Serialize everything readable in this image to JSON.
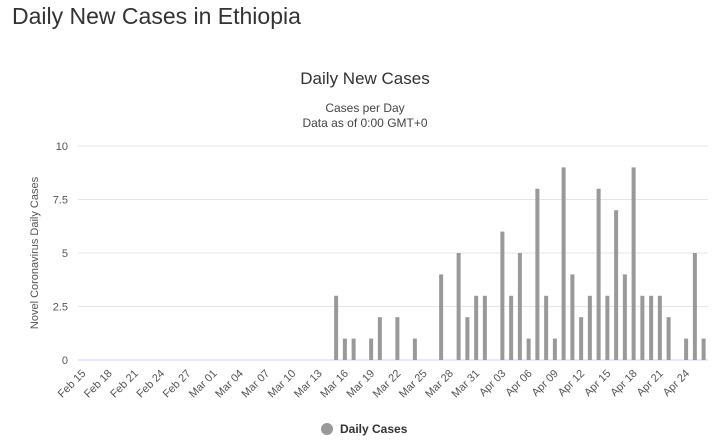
{
  "page": {
    "heading": "Daily New Cases in Ethiopia"
  },
  "colors": {
    "bar": "#999999",
    "grid": "#e6e6e6",
    "axis": "#ccd6eb"
  },
  "chart_data": {
    "type": "bar",
    "title": "Daily New Cases",
    "subtitle_lines": [
      "Cases per Day",
      "Data as of 0:00 GMT+0"
    ],
    "ylabel": "Novel Coronavirus Daily Cases",
    "xlabel": "",
    "ylim": [
      0,
      10
    ],
    "yticks": [
      "0",
      "2.5",
      "5",
      "7.5",
      "10"
    ],
    "yticks_values": [
      0,
      2.5,
      5,
      7.5,
      10
    ],
    "categories": [
      "Feb 15",
      "Feb 16",
      "Feb 17",
      "Feb 18",
      "Feb 19",
      "Feb 20",
      "Feb 21",
      "Feb 22",
      "Feb 23",
      "Feb 24",
      "Feb 25",
      "Feb 26",
      "Feb 27",
      "Feb 28",
      "Feb 29",
      "Mar 01",
      "Mar 02",
      "Mar 03",
      "Mar 04",
      "Mar 05",
      "Mar 06",
      "Mar 07",
      "Mar 08",
      "Mar 09",
      "Mar 10",
      "Mar 11",
      "Mar 12",
      "Mar 13",
      "Mar 14",
      "Mar 15",
      "Mar 16",
      "Mar 17",
      "Mar 18",
      "Mar 19",
      "Mar 20",
      "Mar 21",
      "Mar 22",
      "Mar 23",
      "Mar 24",
      "Mar 25",
      "Mar 26",
      "Mar 27",
      "Mar 28",
      "Mar 29",
      "Mar 30",
      "Mar 31",
      "Apr 01",
      "Apr 02",
      "Apr 03",
      "Apr 04",
      "Apr 05",
      "Apr 06",
      "Apr 07",
      "Apr 08",
      "Apr 09",
      "Apr 10",
      "Apr 11",
      "Apr 12",
      "Apr 13",
      "Apr 14",
      "Apr 15",
      "Apr 16",
      "Apr 17",
      "Apr 18",
      "Apr 19",
      "Apr 20",
      "Apr 21",
      "Apr 22",
      "Apr 23",
      "Apr 24",
      "Apr 25",
      "Apr 26"
    ],
    "xtick_labels": [
      "Feb 15",
      "Feb 18",
      "Feb 21",
      "Feb 24",
      "Feb 27",
      "Mar 01",
      "Mar 04",
      "Mar 07",
      "Mar 10",
      "Mar 13",
      "Mar 16",
      "Mar 19",
      "Mar 22",
      "Mar 25",
      "Mar 28",
      "Mar 31",
      "Apr 03",
      "Apr 06",
      "Apr 09",
      "Apr 12",
      "Apr 15",
      "Apr 18",
      "Apr 21",
      "Apr 24"
    ],
    "series": [
      {
        "name": "Daily Cases",
        "values": [
          0,
          0,
          0,
          0,
          0,
          0,
          0,
          0,
          0,
          0,
          0,
          0,
          0,
          0,
          0,
          0,
          0,
          0,
          0,
          0,
          0,
          0,
          0,
          0,
          0,
          0,
          0,
          0,
          0,
          3,
          1,
          1,
          0,
          1,
          2,
          0,
          2,
          0,
          1,
          0,
          0,
          4,
          0,
          5,
          2,
          3,
          3,
          0,
          6,
          3,
          5,
          1,
          8,
          3,
          1,
          9,
          4,
          2,
          3,
          8,
          3,
          7,
          4,
          9,
          3,
          3,
          3,
          2,
          0,
          1,
          5,
          1
        ]
      }
    ],
    "legend_position": "bottom-center",
    "grid": true
  }
}
